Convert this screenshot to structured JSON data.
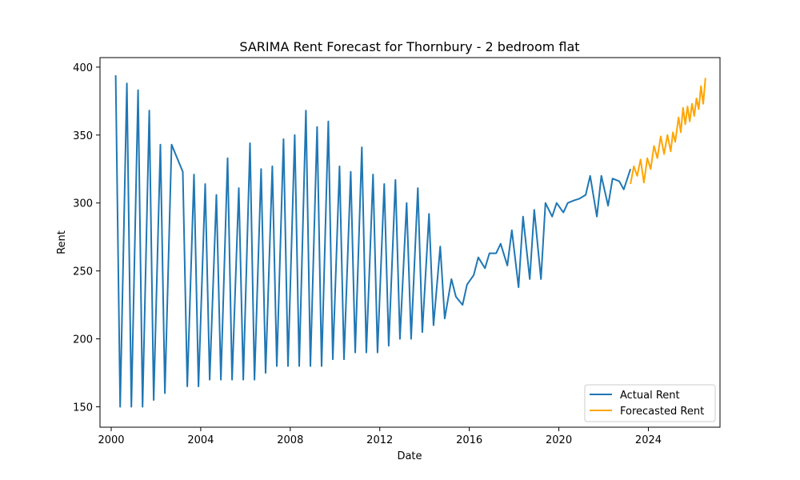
{
  "chart_data": {
    "type": "line",
    "title": "SARIMA Rent Forecast for Thornbury - 2 bedroom flat",
    "xlabel": "Date",
    "ylabel": "Rent",
    "xlim": [
      1999.5,
      2027.2
    ],
    "ylim": [
      135,
      407
    ],
    "xticks": [
      2000,
      2004,
      2008,
      2012,
      2016,
      2020,
      2024
    ],
    "xtick_labels": [
      "2000",
      "2004",
      "2008",
      "2012",
      "2016",
      "2020",
      "2024"
    ],
    "yticks": [
      150,
      200,
      250,
      300,
      350,
      400
    ],
    "ytick_labels": [
      "150",
      "200",
      "250",
      "300",
      "350",
      "400"
    ],
    "grid": false,
    "legend_position": "bottom-right",
    "series": [
      {
        "name": "Actual Rent",
        "color": "#1f77b4",
        "points": [
          [
            2000.2,
            394
          ],
          [
            2000.4,
            150
          ],
          [
            2000.7,
            388
          ],
          [
            2000.9,
            150
          ],
          [
            2001.2,
            383
          ],
          [
            2001.4,
            150
          ],
          [
            2001.7,
            368
          ],
          [
            2001.9,
            155
          ],
          [
            2002.2,
            343
          ],
          [
            2002.4,
            160
          ],
          [
            2002.7,
            343
          ],
          [
            2003.2,
            323
          ],
          [
            2003.4,
            165
          ],
          [
            2003.7,
            321
          ],
          [
            2003.9,
            165
          ],
          [
            2004.2,
            314
          ],
          [
            2004.4,
            170
          ],
          [
            2004.7,
            306
          ],
          [
            2004.9,
            170
          ],
          [
            2005.2,
            333
          ],
          [
            2005.4,
            170
          ],
          [
            2005.7,
            311
          ],
          [
            2005.9,
            170
          ],
          [
            2006.2,
            344
          ],
          [
            2006.4,
            170
          ],
          [
            2006.7,
            325
          ],
          [
            2006.9,
            175
          ],
          [
            2007.2,
            327
          ],
          [
            2007.4,
            180
          ],
          [
            2007.7,
            347
          ],
          [
            2007.9,
            180
          ],
          [
            2008.2,
            350
          ],
          [
            2008.4,
            180
          ],
          [
            2008.7,
            368
          ],
          [
            2008.9,
            180
          ],
          [
            2009.2,
            356
          ],
          [
            2009.4,
            180
          ],
          [
            2009.7,
            360
          ],
          [
            2009.9,
            185
          ],
          [
            2010.2,
            327
          ],
          [
            2010.4,
            185
          ],
          [
            2010.7,
            323
          ],
          [
            2010.9,
            190
          ],
          [
            2011.2,
            341
          ],
          [
            2011.4,
            190
          ],
          [
            2011.7,
            321
          ],
          [
            2011.9,
            190
          ],
          [
            2012.2,
            314
          ],
          [
            2012.4,
            195
          ],
          [
            2012.7,
            317
          ],
          [
            2012.9,
            200
          ],
          [
            2013.2,
            300
          ],
          [
            2013.4,
            200
          ],
          [
            2013.7,
            311
          ],
          [
            2013.9,
            205
          ],
          [
            2014.2,
            292
          ],
          [
            2014.4,
            210
          ],
          [
            2014.7,
            268
          ],
          [
            2014.9,
            215
          ],
          [
            2015.2,
            244
          ],
          [
            2015.4,
            231
          ],
          [
            2015.7,
            225
          ],
          [
            2015.9,
            240
          ],
          [
            2016.2,
            247
          ],
          [
            2016.4,
            260
          ],
          [
            2016.7,
            252
          ],
          [
            2016.9,
            263
          ],
          [
            2017.2,
            263
          ],
          [
            2017.4,
            270
          ],
          [
            2017.7,
            254
          ],
          [
            2017.9,
            280
          ],
          [
            2018.2,
            238
          ],
          [
            2018.4,
            290
          ],
          [
            2018.7,
            244
          ],
          [
            2018.9,
            295
          ],
          [
            2019.2,
            244
          ],
          [
            2019.4,
            300
          ],
          [
            2019.7,
            290
          ],
          [
            2019.9,
            300
          ],
          [
            2020.2,
            293
          ],
          [
            2020.4,
            300
          ],
          [
            2020.7,
            302
          ],
          [
            2020.9,
            303
          ],
          [
            2021.2,
            306
          ],
          [
            2021.4,
            320
          ],
          [
            2021.7,
            290
          ],
          [
            2021.9,
            320
          ],
          [
            2022.2,
            298
          ],
          [
            2022.4,
            318
          ],
          [
            2022.7,
            316
          ],
          [
            2022.9,
            310
          ],
          [
            2023.2,
            325
          ]
        ]
      },
      {
        "name": "Forecasted Rent",
        "color": "#ffa500",
        "points": [
          [
            2023.2,
            314
          ],
          [
            2023.35,
            327
          ],
          [
            2023.5,
            320
          ],
          [
            2023.65,
            332
          ],
          [
            2023.8,
            315
          ],
          [
            2023.95,
            333
          ],
          [
            2024.1,
            325
          ],
          [
            2024.25,
            342
          ],
          [
            2024.4,
            333
          ],
          [
            2024.55,
            349
          ],
          [
            2024.7,
            336
          ],
          [
            2024.85,
            350
          ],
          [
            2025.0,
            338
          ],
          [
            2025.1,
            352
          ],
          [
            2025.2,
            345
          ],
          [
            2025.35,
            363
          ],
          [
            2025.45,
            352
          ],
          [
            2025.55,
            370
          ],
          [
            2025.65,
            358
          ],
          [
            2025.75,
            371
          ],
          [
            2025.85,
            360
          ],
          [
            2025.95,
            373
          ],
          [
            2026.05,
            364
          ],
          [
            2026.15,
            377
          ],
          [
            2026.25,
            369
          ],
          [
            2026.35,
            386
          ],
          [
            2026.45,
            373
          ],
          [
            2026.55,
            392
          ]
        ]
      }
    ]
  }
}
